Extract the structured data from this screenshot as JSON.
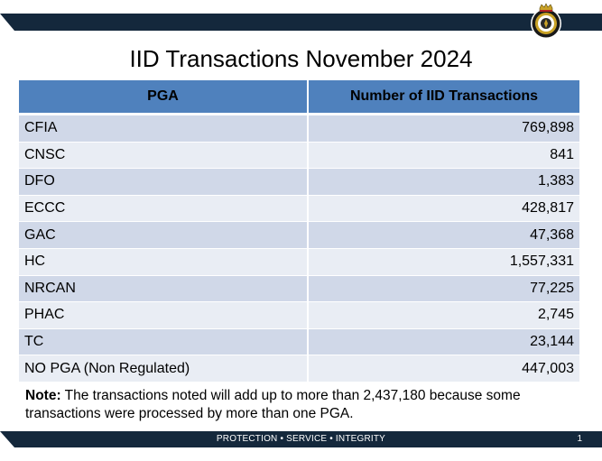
{
  "slide": {
    "title": "IID Transactions November 2024",
    "page_number": "1",
    "footer": "PROTECTION • SERVICE • INTEGRITY"
  },
  "table": {
    "headers": [
      "PGA",
      "Number of IID Transactions"
    ],
    "rows": [
      [
        "CFIA",
        "769,898"
      ],
      [
        "CNSC",
        "841"
      ],
      [
        "DFO",
        "1,383"
      ],
      [
        "ECCC",
        "428,817"
      ],
      [
        "GAC",
        "47,368"
      ],
      [
        "HC",
        "1,557,331"
      ],
      [
        "NRCAN",
        "77,225"
      ],
      [
        "PHAC",
        "2,745"
      ],
      [
        "TC",
        "23,144"
      ],
      [
        "NO PGA (Non Regulated)",
        "447,003"
      ]
    ]
  },
  "note": {
    "label": "Note:",
    "text": " The transactions noted will add up to more than 2,437,180 because some transactions were processed by more than one PGA."
  },
  "colors": {
    "band": "#14283c",
    "header_bg": "#4f81bd",
    "row_odd": "#d0d8e8",
    "row_even": "#e9edf4"
  },
  "icons": {
    "badge": "cbsa-crest-icon"
  }
}
